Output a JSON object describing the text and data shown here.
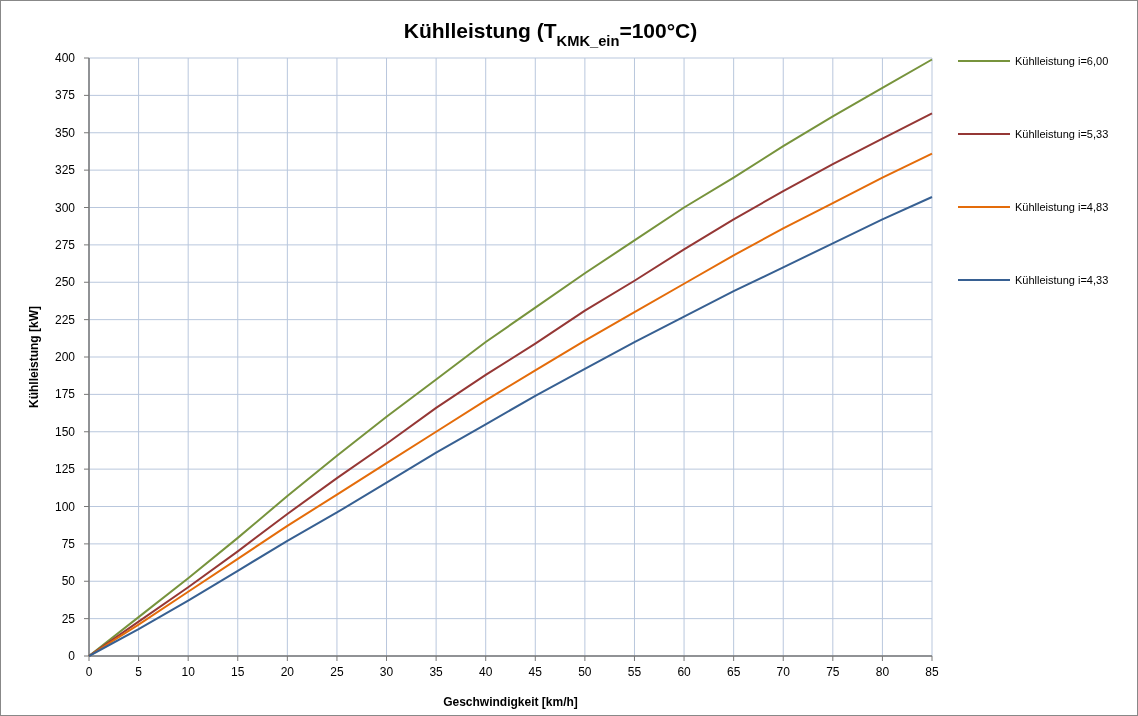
{
  "chart_data": {
    "type": "line",
    "title": "Kühlleistung (T$_{KMK_ein}$=100°C)",
    "xlabel": "Geschwindigkeit [km/h]",
    "ylabel": "Kühlleistung [kW]",
    "x": [
      0,
      5,
      10,
      15,
      20,
      25,
      30,
      35,
      40,
      45,
      50,
      55,
      60,
      65,
      70,
      75,
      80,
      85
    ],
    "series": [
      {
        "name": "Kühlleistung i=6,00",
        "color": "#77933c",
        "values": [
          0,
          26,
          52,
          79,
          107,
          134,
          160,
          185,
          210,
          233,
          256,
          278,
          300,
          320,
          341,
          361,
          380,
          399
        ]
      },
      {
        "name": "Kühlleistung i=5,33",
        "color": "#953735",
        "values": [
          0,
          23,
          46,
          70,
          95,
          119,
          142,
          166,
          188,
          209,
          231,
          251,
          272,
          292,
          311,
          329,
          346,
          363
        ]
      },
      {
        "name": "Kühlleistung i=4,83",
        "color": "#e46c0a",
        "values": [
          0,
          21,
          43,
          65,
          87,
          108,
          129,
          150,
          171,
          191,
          211,
          230,
          249,
          268,
          286,
          303,
          320,
          336
        ]
      },
      {
        "name": "Kühlleistung i=4,33",
        "color": "#376092",
        "values": [
          0,
          18,
          37,
          57,
          77,
          96,
          116,
          136,
          155,
          174,
          192,
          210,
          227,
          244,
          260,
          276,
          292,
          307
        ]
      }
    ],
    "xlim": [
      0,
      85
    ],
    "xticks": [
      0,
      5,
      10,
      15,
      20,
      25,
      30,
      35,
      40,
      45,
      50,
      55,
      60,
      65,
      70,
      75,
      80,
      85
    ],
    "ylim": [
      0,
      400
    ],
    "yticks": [
      0,
      25,
      50,
      75,
      100,
      125,
      150,
      175,
      200,
      225,
      250,
      275,
      300,
      325,
      350,
      375,
      400
    ],
    "grid": true,
    "legend": "right",
    "marker": "none",
    "line_style": "solid"
  }
}
